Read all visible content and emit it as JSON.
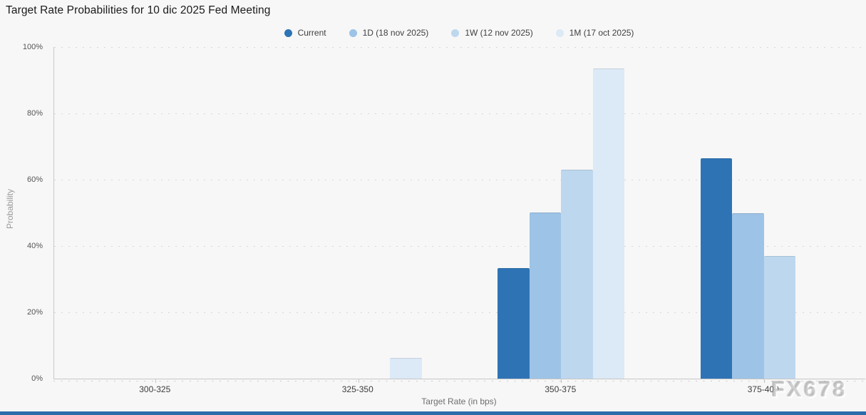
{
  "page": {
    "title": "Target Rate Probabilities for 10 dic 2025 Fed Meeting",
    "watermark": "FX678",
    "background_color": "#f7f7f7",
    "bottom_strip_color": "#2b6cab"
  },
  "chart_data": {
    "type": "bar",
    "title": "Target Rate Probabilities for 10 dic 2025 Fed Meeting",
    "xlabel": "Target Rate (in bps)",
    "ylabel": "Probability",
    "categories": [
      "300-325",
      "325-350",
      "350-375",
      "375-400"
    ],
    "series": [
      {
        "name": "Current",
        "color": "#2e74b5",
        "values": [
          0,
          0,
          33.4,
          66.4
        ]
      },
      {
        "name": "1D (18 nov 2025)",
        "color": "#9dc3e6",
        "values": [
          0,
          0,
          50.1,
          49.8
        ]
      },
      {
        "name": "1W (12 nov 2025)",
        "color": "#bdd7ee",
        "values": [
          0,
          0,
          63.0,
          36.9
        ]
      },
      {
        "name": "1M (17 oct 2025)",
        "color": "#dce9f6",
        "values": [
          0,
          6.2,
          93.5,
          0
        ]
      }
    ],
    "yticks": [
      "0%",
      "20%",
      "40%",
      "60%",
      "80%",
      "100%"
    ],
    "ylim": [
      0,
      100
    ],
    "grid": "horizontal dotted",
    "legend_position": "top-center",
    "axis_line_color": "#c9c9c9",
    "gridline_color": "#d7d7d7"
  }
}
